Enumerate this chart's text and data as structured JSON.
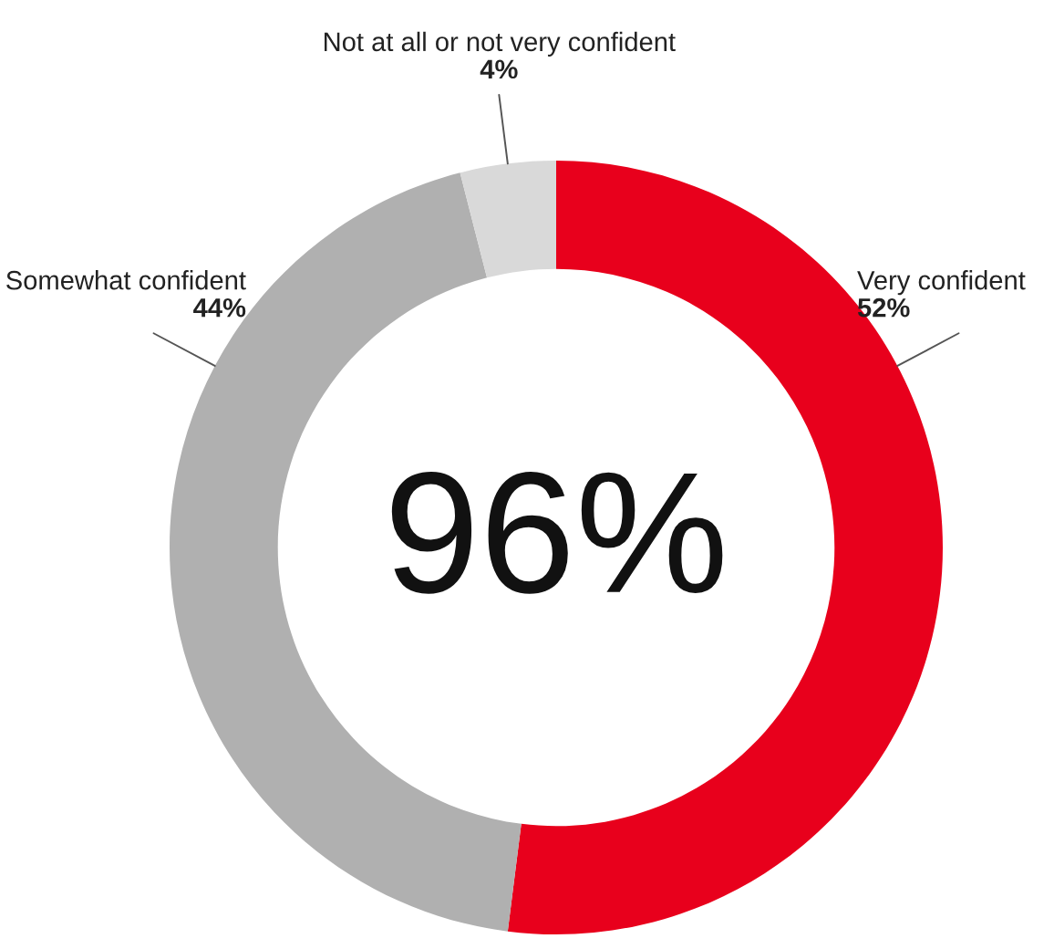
{
  "chart_data": {
    "type": "donut",
    "categories": [
      "Very confident",
      "Somewhat confident",
      "Not at all or not very confident"
    ],
    "values": [
      52,
      44,
      4
    ],
    "value_labels": [
      "52%",
      "44%",
      "4%"
    ],
    "colors": [
      "#e8001c",
      "#b0b0b0",
      "#d9d9d9"
    ],
    "annotations": [
      "96%"
    ]
  }
}
